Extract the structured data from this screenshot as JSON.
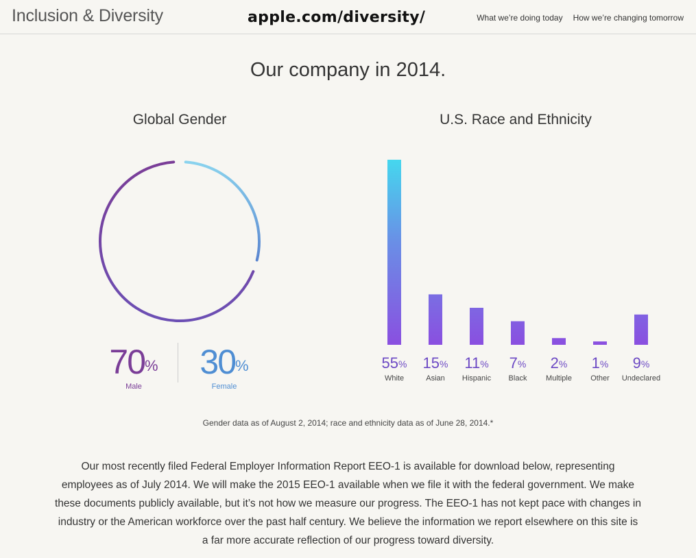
{
  "header": {
    "brand": "Inclusion & Diversity",
    "url_overlay": "apple.com/diversity/",
    "nav": [
      "What we’re doing today",
      "How we’re changing tomorrow"
    ]
  },
  "main": {
    "headline": "Our company in 2014.",
    "gender_title": "Global Gender",
    "race_title": "U.S. Race and Ethnicity",
    "footnote": "Gender data as of August 2, 2014; race and ethnicity data as of June 28, 2014.*",
    "body": "Our most recently filed Federal Employer Information Report EEO-1 is available for download below, representing employees as of July 2014. We will make the 2015 EEO-1 available when we file it with the federal government. We make these documents publicly available, but it’s not how we measure our progress. The EEO-1 has not kept pace with changes in industry or the American workforce over the past half century. We believe the information we report elsewhere on this site is a far more accurate reflection of our progress toward diversity."
  },
  "gender": {
    "male": {
      "value": "70",
      "label": "Male",
      "color": "#7a3d97"
    },
    "female": {
      "value": "30",
      "label": "Female",
      "color": "#4f8ed3"
    },
    "percent_sign": "%"
  },
  "chart_data": [
    {
      "type": "pie",
      "categories": [
        "Male",
        "Female"
      ],
      "values": [
        70,
        30
      ],
      "colors": [
        "#7a3d97",
        "#6fc3e8"
      ]
    },
    {
      "type": "bar",
      "categories": [
        "White",
        "Asian",
        "Hispanic",
        "Black",
        "Multiple",
        "Other",
        "Undeclared"
      ],
      "values": [
        55,
        15,
        11,
        7,
        2,
        1,
        9
      ],
      "ylim": [
        0,
        55
      ],
      "colors": {
        "top": "#45d7ee",
        "bottom": "#8a4fe0"
      }
    }
  ]
}
